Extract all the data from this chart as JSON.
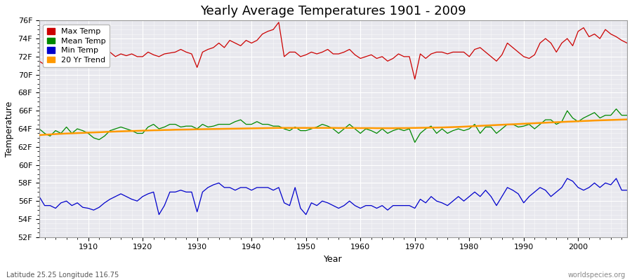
{
  "title": "Yearly Average Temperatures 1901 - 2009",
  "xlabel": "Year",
  "ylabel": "Temperature",
  "subtitle_left": "Latitude 25.25 Longitude 116.75",
  "subtitle_right": "worldspecies.org",
  "ylim": [
    52,
    76
  ],
  "ytick_labels": [
    "52F",
    "54F",
    "56F",
    "58F",
    "60F",
    "62F",
    "64F",
    "66F",
    "68F",
    "70F",
    "72F",
    "74F",
    "76F"
  ],
  "ytick_values": [
    52,
    54,
    56,
    58,
    60,
    62,
    64,
    66,
    68,
    70,
    72,
    74,
    76
  ],
  "xlim": [
    1901,
    2009
  ],
  "xtick_values": [
    1910,
    1920,
    1930,
    1940,
    1950,
    1960,
    1970,
    1980,
    1990,
    2000
  ],
  "legend_labels": [
    "Max Temp",
    "Mean Temp",
    "Min Temp",
    "20 Yr Trend"
  ],
  "legend_colors": [
    "#cc0000",
    "#008800",
    "#0000cc",
    "#ff9900"
  ],
  "line_colors": {
    "max": "#cc0000",
    "mean": "#008800",
    "min": "#0000cc",
    "trend": "#ff9900"
  },
  "fig_bg_color": "#ffffff",
  "plot_bg_color": "#e8e8ee",
  "grid_color": "#ffffff",
  "years": [
    1901,
    1902,
    1903,
    1904,
    1905,
    1906,
    1907,
    1908,
    1909,
    1910,
    1911,
    1912,
    1913,
    1914,
    1915,
    1916,
    1917,
    1918,
    1919,
    1920,
    1921,
    1922,
    1923,
    1924,
    1925,
    1926,
    1927,
    1928,
    1929,
    1930,
    1931,
    1932,
    1933,
    1934,
    1935,
    1936,
    1937,
    1938,
    1939,
    1940,
    1941,
    1942,
    1943,
    1944,
    1945,
    1946,
    1947,
    1948,
    1949,
    1950,
    1951,
    1952,
    1953,
    1954,
    1955,
    1956,
    1957,
    1958,
    1959,
    1960,
    1961,
    1962,
    1963,
    1964,
    1965,
    1966,
    1967,
    1968,
    1969,
    1970,
    1971,
    1972,
    1973,
    1974,
    1975,
    1976,
    1977,
    1978,
    1979,
    1980,
    1981,
    1982,
    1983,
    1984,
    1985,
    1986,
    1987,
    1988,
    1989,
    1990,
    1991,
    1992,
    1993,
    1994,
    1995,
    1996,
    1997,
    1998,
    1999,
    2000,
    2001,
    2002,
    2003,
    2004,
    2005,
    2006,
    2007,
    2008,
    2009
  ],
  "max_temp": [
    71.5,
    71.1,
    71.2,
    71.0,
    71.3,
    71.5,
    71.2,
    71.4,
    71.2,
    71.3,
    71.0,
    71.5,
    72.2,
    72.5,
    72.0,
    72.3,
    72.1,
    72.3,
    72.0,
    72.0,
    72.5,
    72.2,
    72.0,
    72.3,
    72.4,
    72.5,
    72.8,
    72.5,
    72.3,
    70.8,
    72.5,
    72.8,
    73.0,
    73.5,
    73.0,
    73.8,
    73.5,
    73.2,
    73.8,
    73.5,
    73.8,
    74.5,
    74.8,
    75.0,
    75.8,
    72.0,
    72.5,
    72.5,
    72.0,
    72.2,
    72.5,
    72.3,
    72.5,
    72.8,
    72.3,
    72.3,
    72.5,
    72.8,
    72.2,
    71.8,
    72.0,
    72.2,
    71.8,
    72.0,
    71.5,
    71.8,
    72.3,
    72.0,
    72.0,
    69.5,
    72.3,
    71.8,
    72.3,
    72.5,
    72.5,
    72.3,
    72.5,
    72.5,
    72.5,
    72.0,
    72.8,
    73.0,
    72.5,
    72.0,
    71.5,
    72.2,
    73.5,
    73.0,
    72.5,
    72.0,
    71.8,
    72.2,
    73.5,
    74.0,
    73.5,
    72.5,
    73.5,
    74.0,
    73.2,
    74.8,
    75.2,
    74.2,
    74.5,
    74.0,
    75.0,
    74.5,
    74.2,
    73.8,
    73.5
  ],
  "mean_temp": [
    64.0,
    63.5,
    63.2,
    63.8,
    63.5,
    64.2,
    63.5,
    64.0,
    63.8,
    63.5,
    63.0,
    62.8,
    63.2,
    63.8,
    64.0,
    64.2,
    64.0,
    63.8,
    63.5,
    63.5,
    64.2,
    64.5,
    64.0,
    64.2,
    64.5,
    64.5,
    64.2,
    64.3,
    64.3,
    64.0,
    64.5,
    64.2,
    64.3,
    64.5,
    64.5,
    64.5,
    64.8,
    65.0,
    64.5,
    64.5,
    64.8,
    64.5,
    64.5,
    64.3,
    64.3,
    64.0,
    63.8,
    64.2,
    63.8,
    63.8,
    64.0,
    64.2,
    64.5,
    64.3,
    64.0,
    63.5,
    64.0,
    64.5,
    64.0,
    63.5,
    64.0,
    63.8,
    63.5,
    64.0,
    63.5,
    63.8,
    64.0,
    63.8,
    64.0,
    62.5,
    63.5,
    64.0,
    64.3,
    63.5,
    64.0,
    63.5,
    63.8,
    64.0,
    63.8,
    64.0,
    64.5,
    63.5,
    64.2,
    64.2,
    63.5,
    64.0,
    64.5,
    64.5,
    64.2,
    64.3,
    64.5,
    64.0,
    64.5,
    65.0,
    65.0,
    64.5,
    64.8,
    66.0,
    65.2,
    64.8,
    65.2,
    65.5,
    65.8,
    65.2,
    65.5,
    65.5,
    66.2,
    65.5,
    65.5
  ],
  "min_temp": [
    56.5,
    55.5,
    55.5,
    55.2,
    55.8,
    56.0,
    55.5,
    55.8,
    55.3,
    55.2,
    55.0,
    55.3,
    55.8,
    56.2,
    56.5,
    56.8,
    56.5,
    56.2,
    56.0,
    56.5,
    56.8,
    57.0,
    54.5,
    55.5,
    57.0,
    57.0,
    57.2,
    57.0,
    57.0,
    54.8,
    57.0,
    57.5,
    57.8,
    58.0,
    57.5,
    57.5,
    57.2,
    57.5,
    57.5,
    57.2,
    57.5,
    57.5,
    57.5,
    57.2,
    57.5,
    55.8,
    55.5,
    57.5,
    55.2,
    54.5,
    55.8,
    55.5,
    56.0,
    55.8,
    55.5,
    55.2,
    55.5,
    56.0,
    55.5,
    55.2,
    55.5,
    55.5,
    55.2,
    55.5,
    55.0,
    55.5,
    55.5,
    55.5,
    55.5,
    55.2,
    56.2,
    55.8,
    56.5,
    56.0,
    55.8,
    55.5,
    56.0,
    56.5,
    56.0,
    56.5,
    57.0,
    56.5,
    57.2,
    56.5,
    55.5,
    56.5,
    57.5,
    57.2,
    56.8,
    55.8,
    56.5,
    57.0,
    57.5,
    57.2,
    56.5,
    57.0,
    57.5,
    58.5,
    58.2,
    57.5,
    57.2,
    57.5,
    58.0,
    57.5,
    58.0,
    57.8,
    58.5,
    57.2,
    57.2
  ],
  "trend": [
    63.3,
    63.35,
    63.38,
    63.42,
    63.45,
    63.48,
    63.5,
    63.53,
    63.55,
    63.58,
    63.6,
    63.62,
    63.65,
    63.68,
    63.7,
    63.72,
    63.74,
    63.76,
    63.78,
    63.8,
    63.82,
    63.84,
    63.85,
    63.87,
    63.88,
    63.9,
    63.91,
    63.92,
    63.93,
    63.95,
    63.96,
    63.97,
    63.98,
    63.99,
    64.0,
    64.01,
    64.02,
    64.03,
    64.04,
    64.05,
    64.06,
    64.07,
    64.08,
    64.09,
    64.1,
    64.1,
    64.1,
    64.1,
    64.1,
    64.1,
    64.1,
    64.1,
    64.1,
    64.1,
    64.1,
    64.09,
    64.09,
    64.09,
    64.09,
    64.08,
    64.08,
    64.08,
    64.07,
    64.07,
    64.07,
    64.07,
    64.08,
    64.08,
    64.09,
    64.1,
    64.11,
    64.12,
    64.13,
    64.14,
    64.15,
    64.17,
    64.19,
    64.21,
    64.24,
    64.27,
    64.3,
    64.33,
    64.36,
    64.39,
    64.42,
    64.45,
    64.48,
    64.5,
    64.53,
    64.56,
    64.59,
    64.62,
    64.65,
    64.68,
    64.71,
    64.73,
    64.76,
    64.79,
    64.81,
    64.84,
    64.87,
    64.89,
    64.92,
    64.94,
    64.96,
    64.98,
    65.0,
    65.02,
    65.04
  ]
}
